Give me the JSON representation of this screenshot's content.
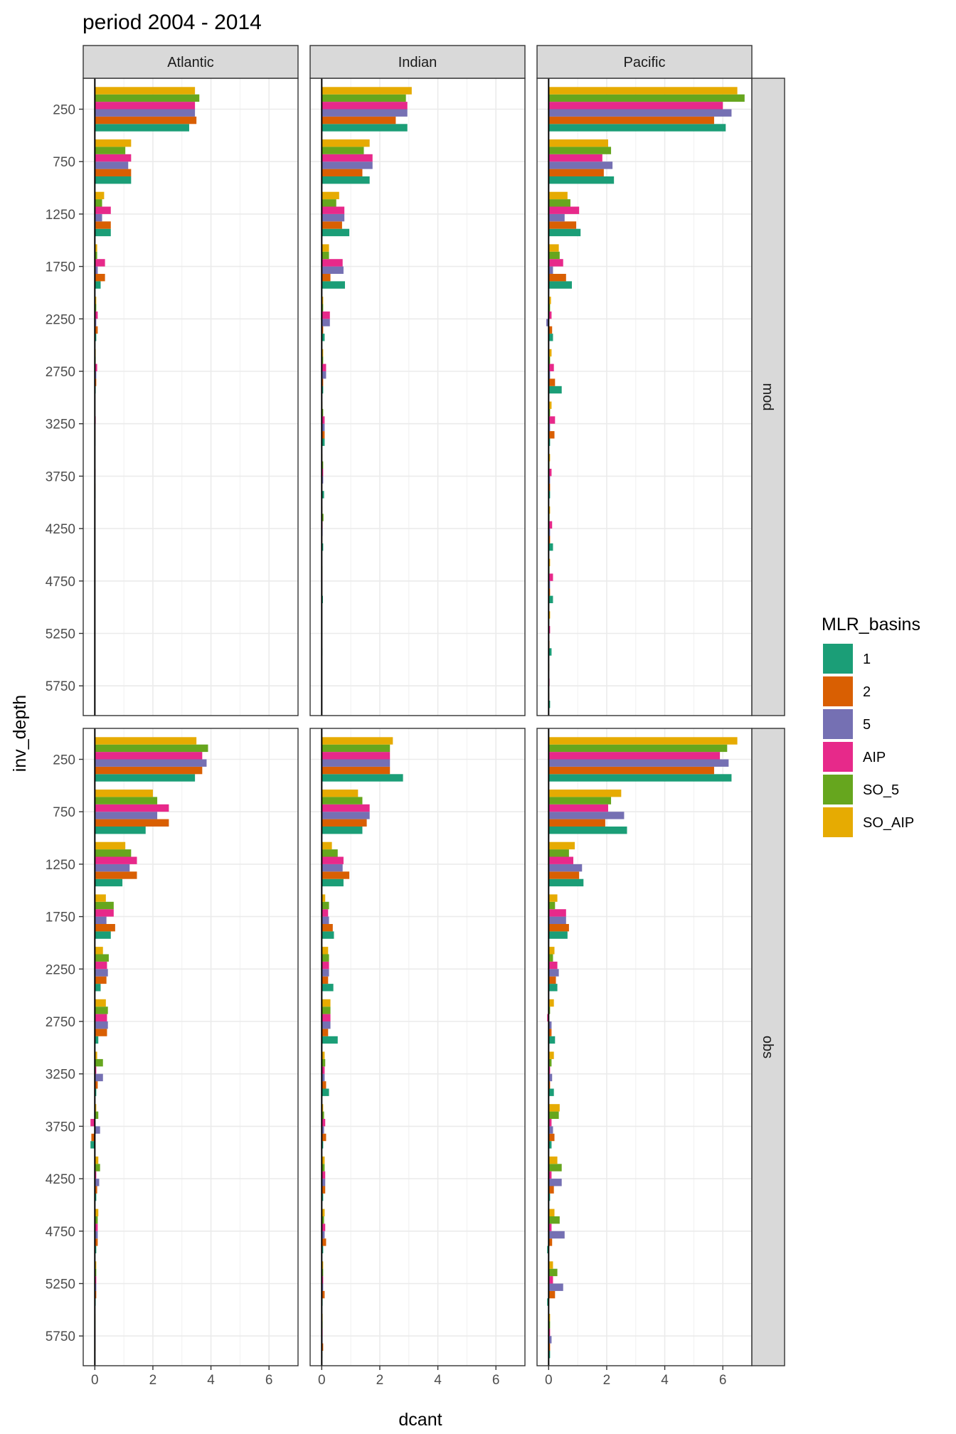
{
  "chart_data": {
    "type": "bar",
    "orientation": "horizontal",
    "title": "period 2004 - 2014",
    "xlabel": "dcant",
    "ylabel": "inv_depth",
    "xlim": [
      -0.4,
      7
    ],
    "x_ticks": [
      "0",
      "2",
      "4",
      "6"
    ],
    "y_ticks": [
      "250",
      "750",
      "1250",
      "1750",
      "2250",
      "2750",
      "3250",
      "3750",
      "4250",
      "4750",
      "5250",
      "5750"
    ],
    "facet_columns": [
      "Atlantic",
      "Indian",
      "Pacific"
    ],
    "facet_rows": [
      "mod",
      "obs"
    ],
    "grid": true,
    "legend": {
      "title": "MLR_basins",
      "position": "right",
      "items": [
        {
          "label": "1",
          "color": "#1B9E77"
        },
        {
          "label": "2",
          "color": "#D95F02"
        },
        {
          "label": "5",
          "color": "#7570B3"
        },
        {
          "label": "AIP",
          "color": "#E7298A"
        },
        {
          "label": "SO_5",
          "color": "#66A61E"
        },
        {
          "label": "SO_AIP",
          "color": "#E6AB02"
        }
      ]
    },
    "series_order": [
      "1",
      "2",
      "5",
      "AIP",
      "SO_5",
      "SO_AIP"
    ],
    "panels": {
      "mod": {
        "Atlantic": {
          "1": [
            3.25,
            1.25,
            0.55,
            0.2,
            0.05,
            0.03,
            0.02,
            0.02,
            0.01,
            0.01,
            0.0,
            0.0
          ],
          "2": [
            3.5,
            1.25,
            0.55,
            0.35,
            0.1,
            0.05,
            0.02,
            0.02,
            0.0,
            0.0,
            0.0,
            0.0
          ],
          "5": [
            3.45,
            1.15,
            0.25,
            0.1,
            0.05,
            0.05,
            0.02,
            0.01,
            0.01,
            0.0,
            0.0,
            0.0
          ],
          "AIP": [
            3.45,
            1.25,
            0.55,
            0.35,
            0.1,
            0.08,
            0.03,
            0.02,
            0.01,
            0.0,
            0.0,
            0.0
          ],
          "SO_5": [
            3.6,
            1.05,
            0.25,
            0.08,
            0.05,
            0.03,
            0.01,
            0.01,
            0.01,
            0.0,
            0.0,
            0.0
          ],
          "SO_AIP": [
            3.45,
            1.25,
            0.32,
            0.08,
            0.05,
            0.03,
            0.01,
            0.01,
            0.01,
            0.0,
            0.0,
            0.0
          ]
        },
        "Indian": {
          "1": [
            2.95,
            1.65,
            0.95,
            0.8,
            0.1,
            0.05,
            0.1,
            0.08,
            0.05,
            0.04,
            0.02,
            0.01
          ],
          "2": [
            2.55,
            1.4,
            0.7,
            0.3,
            0.05,
            0.05,
            0.1,
            0.02,
            0.02,
            0.02,
            0.01,
            0.01
          ],
          "5": [
            2.95,
            1.75,
            0.78,
            0.75,
            0.28,
            0.15,
            0.1,
            0.05,
            0.03,
            0.02,
            0.01,
            0.0
          ],
          "AIP": [
            2.95,
            1.75,
            0.78,
            0.72,
            0.28,
            0.15,
            0.1,
            0.05,
            0.03,
            0.02,
            0.01,
            0.0
          ],
          "SO_5": [
            2.9,
            1.45,
            0.5,
            0.25,
            0.05,
            0.05,
            0.05,
            0.05,
            0.06,
            0.02,
            0.01,
            0.0
          ],
          "SO_AIP": [
            3.1,
            1.65,
            0.6,
            0.25,
            0.05,
            0.05,
            0.02,
            0.02,
            0.02,
            0.01,
            0.01,
            0.0
          ]
        },
        "Pacific": {
          "1": [
            6.1,
            2.25,
            1.1,
            0.8,
            0.15,
            0.45,
            0.05,
            0.05,
            0.15,
            0.15,
            0.1,
            0.05
          ],
          "2": [
            5.7,
            1.9,
            0.95,
            0.6,
            0.12,
            0.22,
            0.2,
            0.05,
            0.05,
            0.05,
            0.03,
            0.02
          ],
          "5": [
            6.3,
            2.2,
            0.55,
            0.15,
            -0.08,
            0.05,
            0.05,
            0.05,
            0.05,
            0.05,
            0.02,
            0.01
          ],
          "AIP": [
            6.0,
            1.85,
            1.05,
            0.5,
            0.1,
            0.18,
            0.22,
            0.1,
            0.12,
            0.15,
            0.05,
            0.03
          ],
          "SO_5": [
            6.75,
            2.15,
            0.75,
            0.38,
            0.05,
            0.05,
            0.05,
            0.03,
            0.03,
            0.03,
            0.02,
            0.01
          ],
          "SO_AIP": [
            6.5,
            2.05,
            0.65,
            0.35,
            0.08,
            0.1,
            0.1,
            0.05,
            0.05,
            0.05,
            0.05,
            0.02
          ]
        }
      },
      "obs": {
        "Atlantic": {
          "1": [
            3.45,
            1.75,
            0.95,
            0.55,
            0.2,
            0.12,
            0.05,
            -0.15,
            0.05,
            0.05,
            0.03,
            0.0
          ],
          "2": [
            3.7,
            2.55,
            1.45,
            0.7,
            0.4,
            0.42,
            0.1,
            -0.12,
            0.08,
            0.1,
            0.05,
            0.02
          ],
          "5": [
            3.85,
            2.15,
            1.2,
            0.4,
            0.45,
            0.45,
            0.28,
            0.18,
            0.15,
            0.1,
            0.05,
            0.02
          ],
          "AIP": [
            3.7,
            2.55,
            1.45,
            0.65,
            0.42,
            0.42,
            0.05,
            -0.15,
            0.05,
            0.1,
            0.05,
            0.02
          ],
          "SO_5": [
            3.9,
            2.15,
            1.25,
            0.65,
            0.48,
            0.45,
            0.28,
            0.12,
            0.18,
            0.1,
            0.05,
            0.02
          ],
          "SO_AIP": [
            3.5,
            2.0,
            1.05,
            0.38,
            0.28,
            0.38,
            0.08,
            0.05,
            0.12,
            0.12,
            0.05,
            0.02
          ]
        },
        "Indian": {
          "1": [
            2.8,
            1.4,
            0.75,
            0.42,
            0.4,
            0.55,
            0.25,
            0.05,
            0.05,
            0.05,
            0.03,
            0.02
          ],
          "2": [
            2.35,
            1.55,
            0.95,
            0.38,
            0.22,
            0.22,
            0.15,
            0.15,
            0.12,
            0.15,
            0.1,
            0.05
          ],
          "5": [
            2.35,
            1.65,
            0.72,
            0.25,
            0.25,
            0.3,
            0.1,
            0.08,
            0.12,
            0.1,
            0.05,
            0.03
          ],
          "AIP": [
            2.35,
            1.65,
            0.75,
            0.22,
            0.25,
            0.3,
            0.1,
            0.12,
            0.12,
            0.12,
            0.05,
            0.03
          ],
          "SO_5": [
            2.35,
            1.4,
            0.55,
            0.25,
            0.25,
            0.3,
            0.12,
            0.08,
            0.1,
            0.08,
            0.05,
            0.03
          ],
          "SO_AIP": [
            2.45,
            1.25,
            0.35,
            0.12,
            0.22,
            0.3,
            0.1,
            0.05,
            0.1,
            0.1,
            0.05,
            0.03
          ]
        },
        "Pacific": {
          "1": [
            6.3,
            2.7,
            1.2,
            0.65,
            0.3,
            0.22,
            0.18,
            0.1,
            0.05,
            -0.05,
            -0.05,
            0.05
          ],
          "2": [
            5.7,
            1.95,
            1.05,
            0.7,
            0.25,
            0.1,
            0.05,
            0.2,
            0.18,
            0.12,
            0.22,
            0.05
          ],
          "5": [
            6.2,
            2.6,
            1.15,
            0.6,
            0.35,
            0.1,
            0.12,
            0.15,
            0.45,
            0.55,
            0.5,
            0.1
          ],
          "AIP": [
            5.9,
            2.05,
            0.85,
            0.6,
            0.3,
            -0.05,
            0.05,
            0.1,
            0.1,
            0.1,
            0.15,
            0.05
          ],
          "SO_5": [
            6.15,
            2.15,
            0.7,
            0.22,
            0.15,
            0.05,
            0.1,
            0.35,
            0.45,
            0.38,
            0.3,
            0.05
          ],
          "SO_AIP": [
            6.5,
            2.5,
            0.9,
            0.3,
            0.2,
            0.18,
            0.18,
            0.38,
            0.3,
            0.2,
            0.15,
            0.05
          ]
        }
      }
    }
  }
}
